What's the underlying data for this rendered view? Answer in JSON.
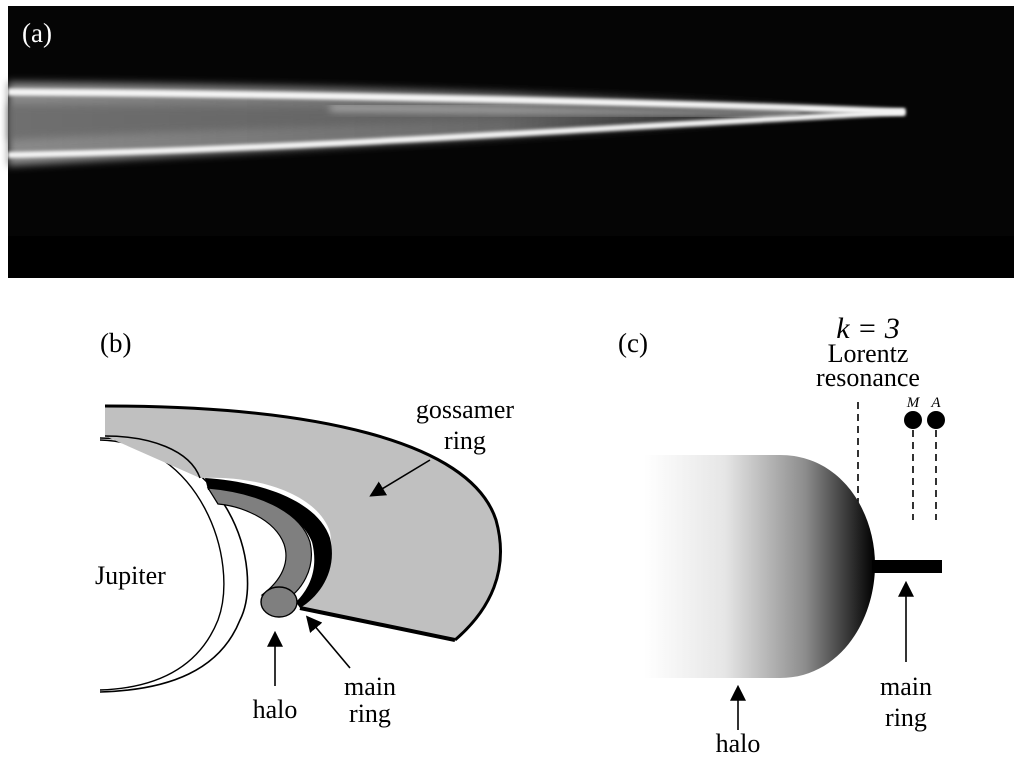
{
  "panel_a": {
    "label": "(a)"
  },
  "panel_b": {
    "label": "(b)",
    "planet_label": "Jupiter",
    "gossamer_label": [
      "gossamer",
      "ring"
    ],
    "halo_label": "halo",
    "main_ring_label": [
      "main",
      "ring"
    ]
  },
  "panel_c": {
    "label": "(c)",
    "resonance_label": [
      "k = 3",
      "Lorentz",
      "resonance"
    ],
    "moon_labels": [
      "M",
      "A"
    ],
    "halo_label": "halo",
    "main_ring_label": [
      "main",
      "ring"
    ]
  },
  "colors": {
    "background": "#ffffff",
    "image_background": "#050505",
    "gossamer_fill": "#c0c0c0",
    "main_ring_fill": "#7f7f7f",
    "line": "#000000"
  }
}
